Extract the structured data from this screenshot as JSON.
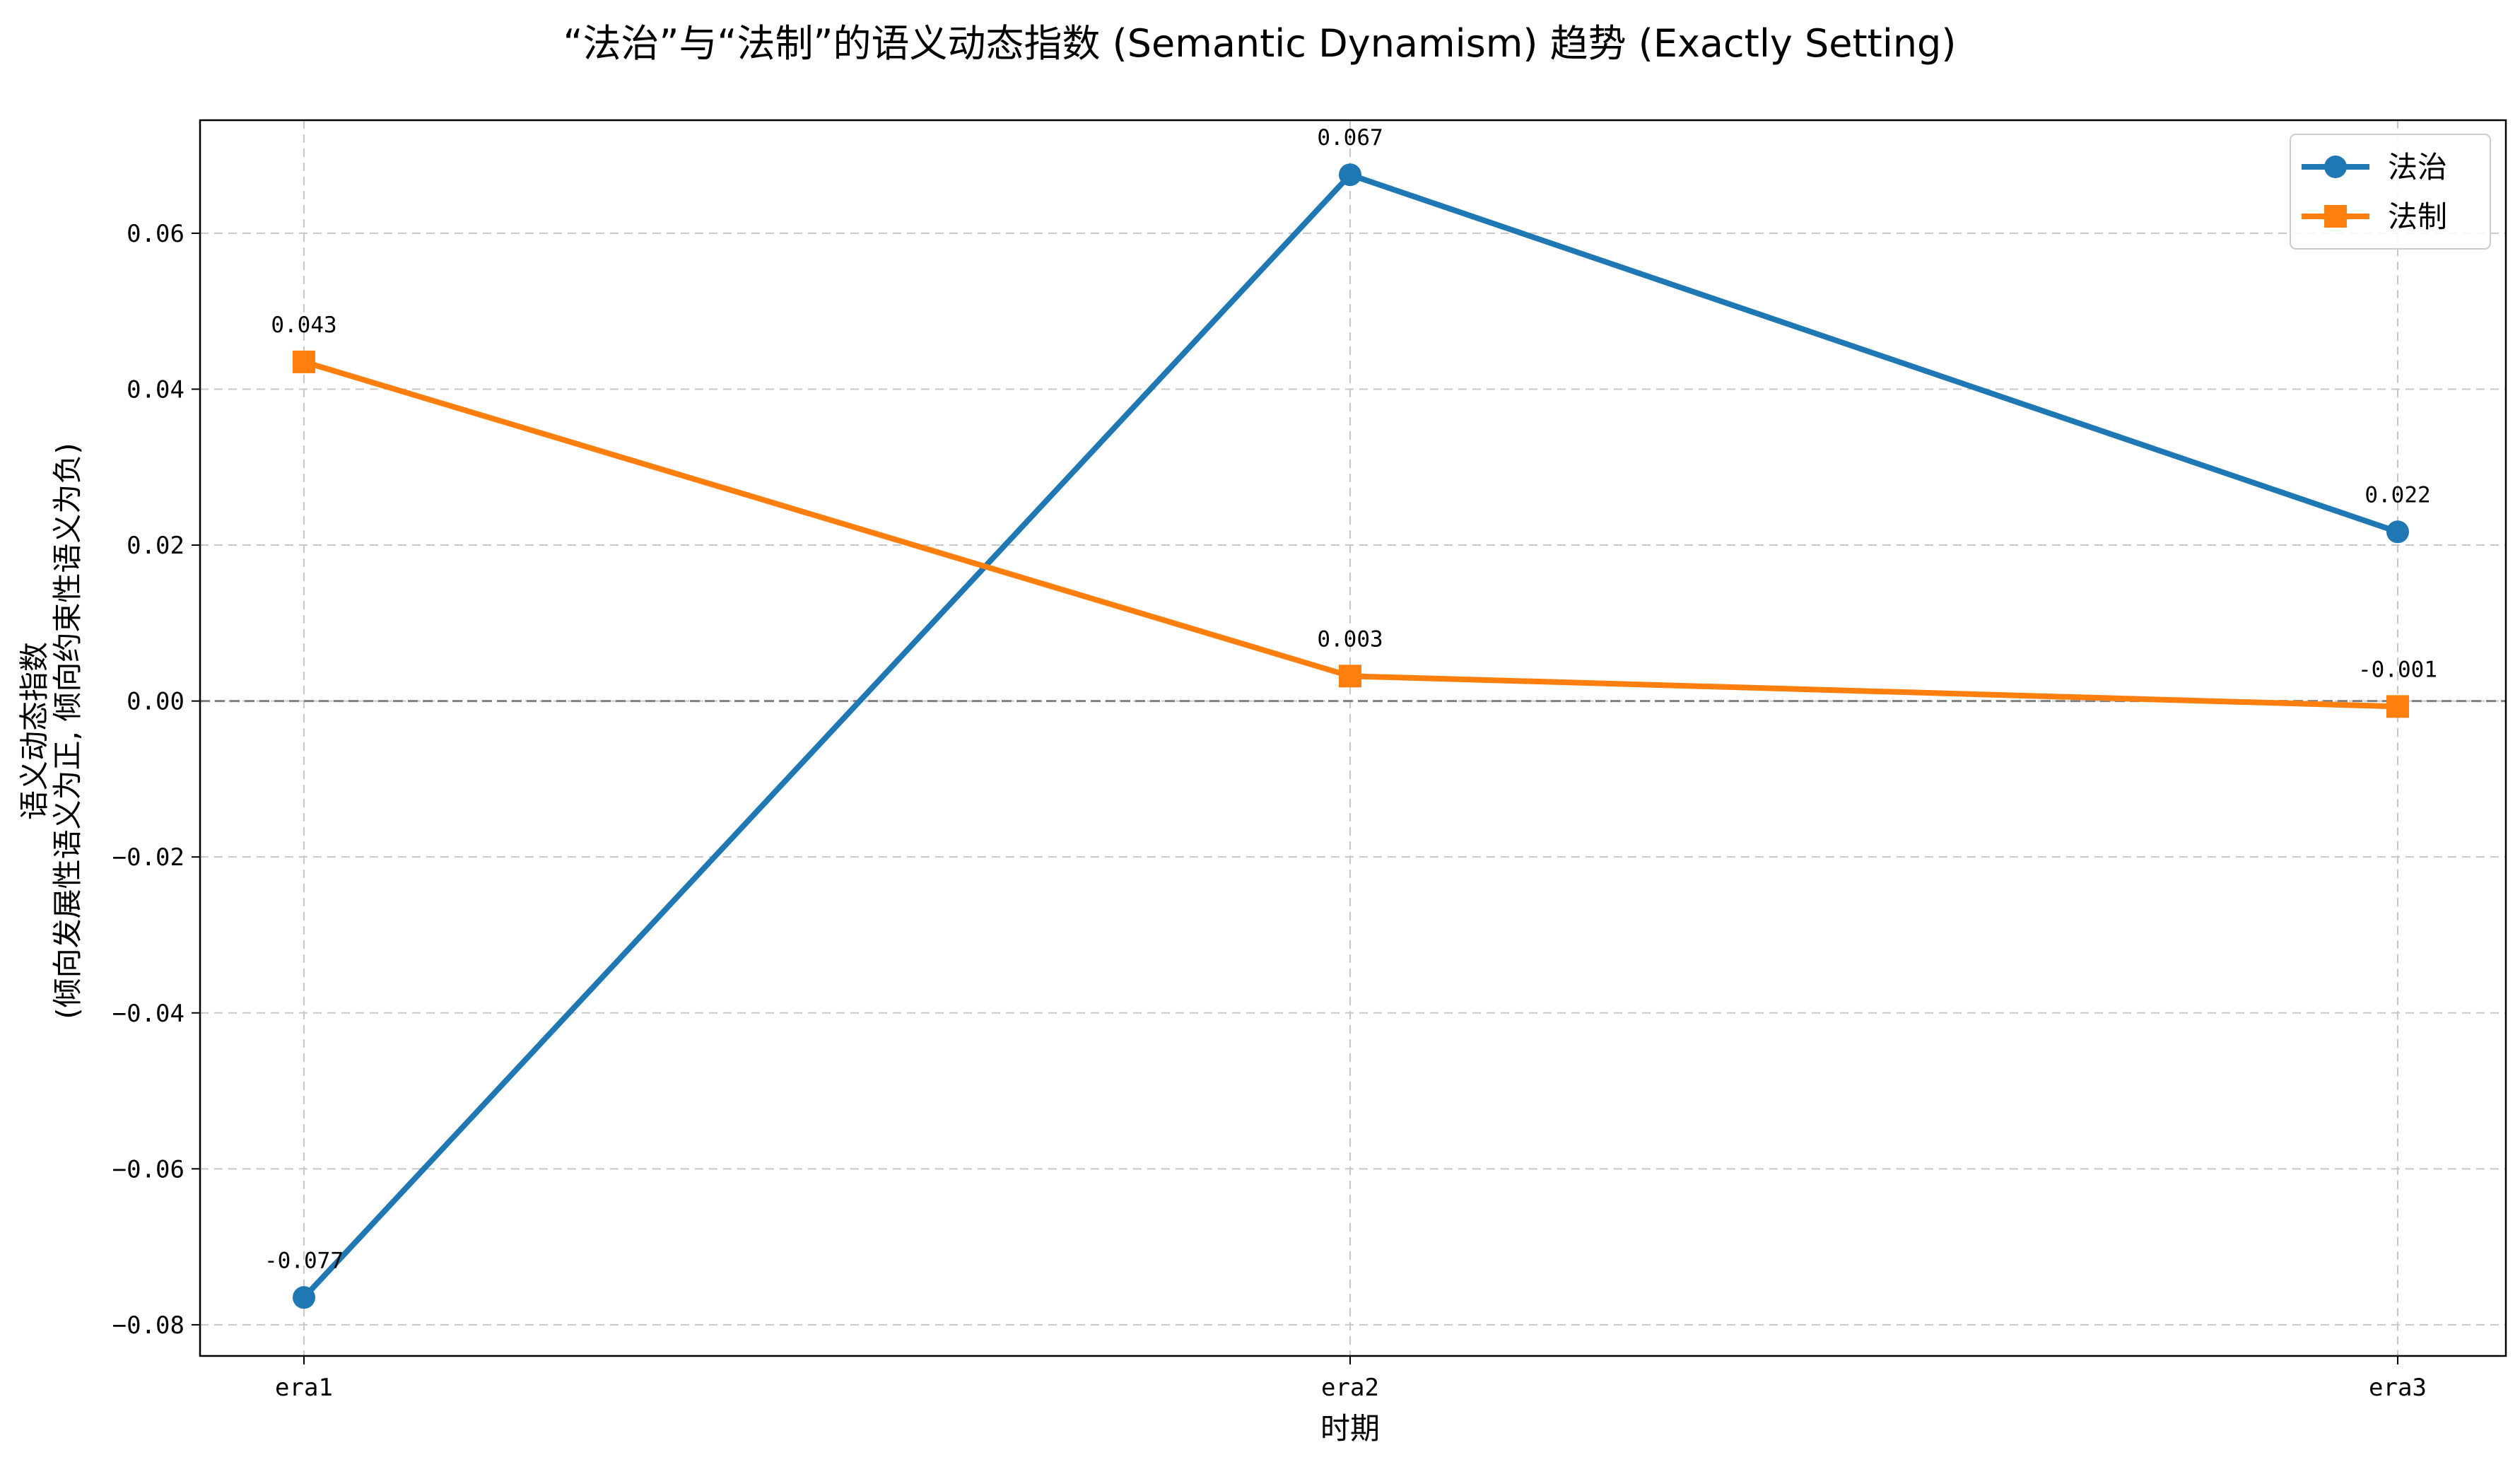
{
  "chart_data": {
    "type": "line",
    "title": "“法治”与“法制”的语义动态指数 (Semantic Dynamism) 趋势 (Exactly Setting)",
    "xlabel": "时期",
    "ylabel_line1": "语义动态指数",
    "ylabel_line2": "(倾向发展性语义为正, 倾向约束性语义为负)",
    "categories": [
      "era1",
      "era2",
      "era3"
    ],
    "ylim": [
      -0.084,
      0.0745
    ],
    "yticks": [
      -0.08,
      -0.06,
      -0.04,
      -0.02,
      0.0,
      0.02,
      0.04,
      0.06
    ],
    "ytick_labels": [
      "−0.08",
      "−0.06",
      "−0.04",
      "−0.02",
      "0.00",
      "0.02",
      "0.04",
      "0.06"
    ],
    "grid": true,
    "zero_line": true,
    "legend_position": "top-right",
    "series": [
      {
        "name": "法治",
        "values": [
          -0.0765,
          0.0675,
          0.0217
        ],
        "value_labels": [
          "-0.077",
          "0.067",
          "0.022"
        ],
        "color": "#1f77b4",
        "marker": "circle"
      },
      {
        "name": "法制",
        "values": [
          0.0435,
          0.0032,
          -0.0007
        ],
        "value_labels": [
          "0.043",
          "0.003",
          "-0.001"
        ],
        "color": "#ff7f0e",
        "marker": "square"
      }
    ]
  }
}
